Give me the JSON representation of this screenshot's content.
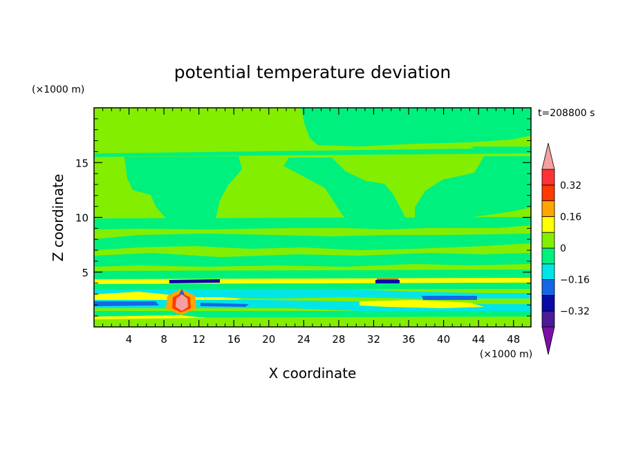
{
  "chart_data": {
    "type": "heatmap",
    "title": "potential temperature deviation",
    "xlabel": "X coordinate",
    "ylabel": "Z coordinate",
    "x_unit": "(×1000 m)",
    "y_unit": "(×1000 m)",
    "time_label": "t=208800 s",
    "xlim": [
      0,
      50
    ],
    "ylim": [
      0,
      20
    ],
    "x_ticks": [
      4,
      8,
      12,
      16,
      20,
      24,
      28,
      32,
      36,
      40,
      44,
      48
    ],
    "y_ticks": [
      5,
      10,
      15
    ],
    "colorbar": {
      "levels": [
        -0.4,
        -0.32,
        -0.24,
        -0.16,
        -0.08,
        0,
        0.08,
        0.16,
        0.24,
        0.32,
        0.4
      ],
      "colors": [
        "#7b0fa8",
        "#4b1a96",
        "#0a0aa6",
        "#1566e6",
        "#00e6e6",
        "#00f07e",
        "#84ee00",
        "#ffff00",
        "#ffa500",
        "#ff3a00",
        "#ff3333",
        "#f5a0a0"
      ],
      "tick_labels": [
        "0.32",
        "0.16",
        "0",
        "−0.16",
        "−0.32"
      ],
      "tick_values": [
        0.32,
        0.16,
        0,
        -0.16,
        -0.32
      ],
      "extend": "both"
    },
    "background_value": 0.04,
    "features": [
      {
        "shape": "band",
        "x": [
          0,
          50
        ],
        "z": [
          15.6,
          15.9
        ],
        "value": -0.03
      },
      {
        "shape": "band",
        "x": [
          0,
          50
        ],
        "z": [
          9.2,
          8.5
        ],
        "value": -0.03
      },
      {
        "shape": "band",
        "x": [
          0,
          50
        ],
        "z": [
          7.3,
          6.8
        ],
        "value": -0.03
      },
      {
        "shape": "band",
        "x": [
          0,
          50
        ],
        "z": [
          4.3,
          4.1
        ],
        "value": 0.2
      },
      {
        "shape": "band",
        "x": [
          0,
          50
        ],
        "z": [
          3.9,
          3.6
        ],
        "value": -0.04
      },
      {
        "shape": "band",
        "x": [
          0,
          50
        ],
        "z": [
          2.3,
          1.6
        ],
        "value": -0.1
      },
      {
        "shape": "band",
        "x": [
          0,
          50
        ],
        "z": [
          1.0,
          0.6
        ],
        "value": -0.03
      }
    ],
    "extremes": [
      {
        "x": 10,
        "z": 2.3,
        "value": 0.45,
        "label": "max"
      },
      {
        "x": 10,
        "z": 4.2,
        "value": -0.3,
        "label": "min"
      },
      {
        "x": 33,
        "z": 4.1,
        "value": -0.3,
        "label": "min"
      }
    ]
  }
}
